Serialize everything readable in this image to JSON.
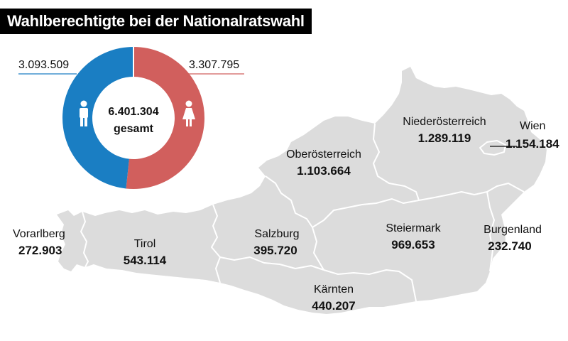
{
  "title": "Wahlberechtigte bei der Nationalratswahl",
  "colors": {
    "male": "#1a7ec3",
    "female": "#d15f5d",
    "map": "#dcdcdc",
    "border": "#ffffff"
  },
  "icons": {
    "male": "male-person-icon",
    "female": "female-person-icon"
  },
  "donut": {
    "male_value": "3.093.509",
    "female_value": "3.307.795",
    "total_value": "6.401.304",
    "total_label": "gesamt"
  },
  "chart_data": {
    "type": "pie",
    "categories": [
      "male",
      "female"
    ],
    "values": [
      3093509,
      3307795
    ]
  },
  "states": [
    {
      "name": "Vorarlberg",
      "value": "272.903"
    },
    {
      "name": "Tirol",
      "value": "543.114"
    },
    {
      "name": "Salzburg",
      "value": "395.720"
    },
    {
      "name": "Oberösterreich",
      "value": "1.103.664"
    },
    {
      "name": "Niederösterreich",
      "value": "1.289.119"
    },
    {
      "name": "Wien",
      "value": "1.154.184"
    },
    {
      "name": "Steiermark",
      "value": "969.653"
    },
    {
      "name": "Kärnten",
      "value": "440.207"
    },
    {
      "name": "Burgenland",
      "value": "232.740"
    }
  ]
}
